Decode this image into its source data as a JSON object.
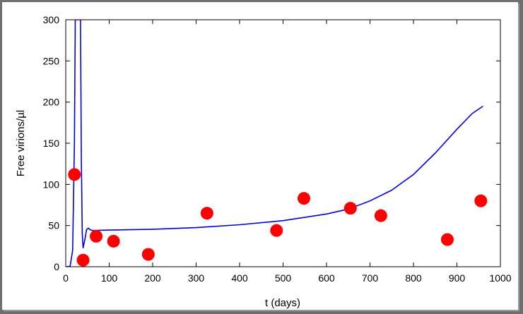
{
  "chart_data": {
    "type": "scatter",
    "title": "",
    "xlabel": "t (days)",
    "ylabel": "Free virions/µl",
    "xlim": [
      0,
      1000
    ],
    "ylim": [
      0,
      300
    ],
    "xticks": [
      0,
      100,
      200,
      300,
      400,
      500,
      600,
      700,
      800,
      900,
      1000
    ],
    "yticks": [
      0,
      50,
      100,
      150,
      200,
      250,
      300
    ],
    "grid": false,
    "series": [
      {
        "kind": "scatter",
        "color": "#ff0000",
        "points": [
          [
            20,
            112
          ],
          [
            40,
            8
          ],
          [
            70,
            37
          ],
          [
            110,
            31
          ],
          [
            190,
            15
          ],
          [
            325,
            65
          ],
          [
            485,
            44
          ],
          [
            548,
            83
          ],
          [
            655,
            71
          ],
          [
            725,
            62
          ],
          [
            878,
            33
          ],
          [
            955,
            80
          ]
        ]
      },
      {
        "kind": "line",
        "color": "#0000dd",
        "points": [
          [
            0,
            0
          ],
          [
            10,
            0.5
          ],
          [
            16,
            20
          ],
          [
            20,
            150
          ],
          [
            22,
            300
          ],
          [
            30,
            300
          ],
          [
            34,
            300
          ],
          [
            36,
            130
          ],
          [
            38,
            40
          ],
          [
            40,
            23
          ],
          [
            44,
            33
          ],
          [
            48,
            45
          ],
          [
            52,
            47
          ],
          [
            56,
            45
          ],
          [
            62,
            44
          ],
          [
            100,
            44.5
          ],
          [
            200,
            45.5
          ],
          [
            300,
            47.5
          ],
          [
            400,
            51
          ],
          [
            500,
            56
          ],
          [
            600,
            64
          ],
          [
            650,
            70
          ],
          [
            700,
            80
          ],
          [
            750,
            93
          ],
          [
            800,
            112
          ],
          [
            850,
            138
          ],
          [
            900,
            167
          ],
          [
            935,
            186
          ],
          [
            960,
            195
          ]
        ]
      }
    ]
  }
}
